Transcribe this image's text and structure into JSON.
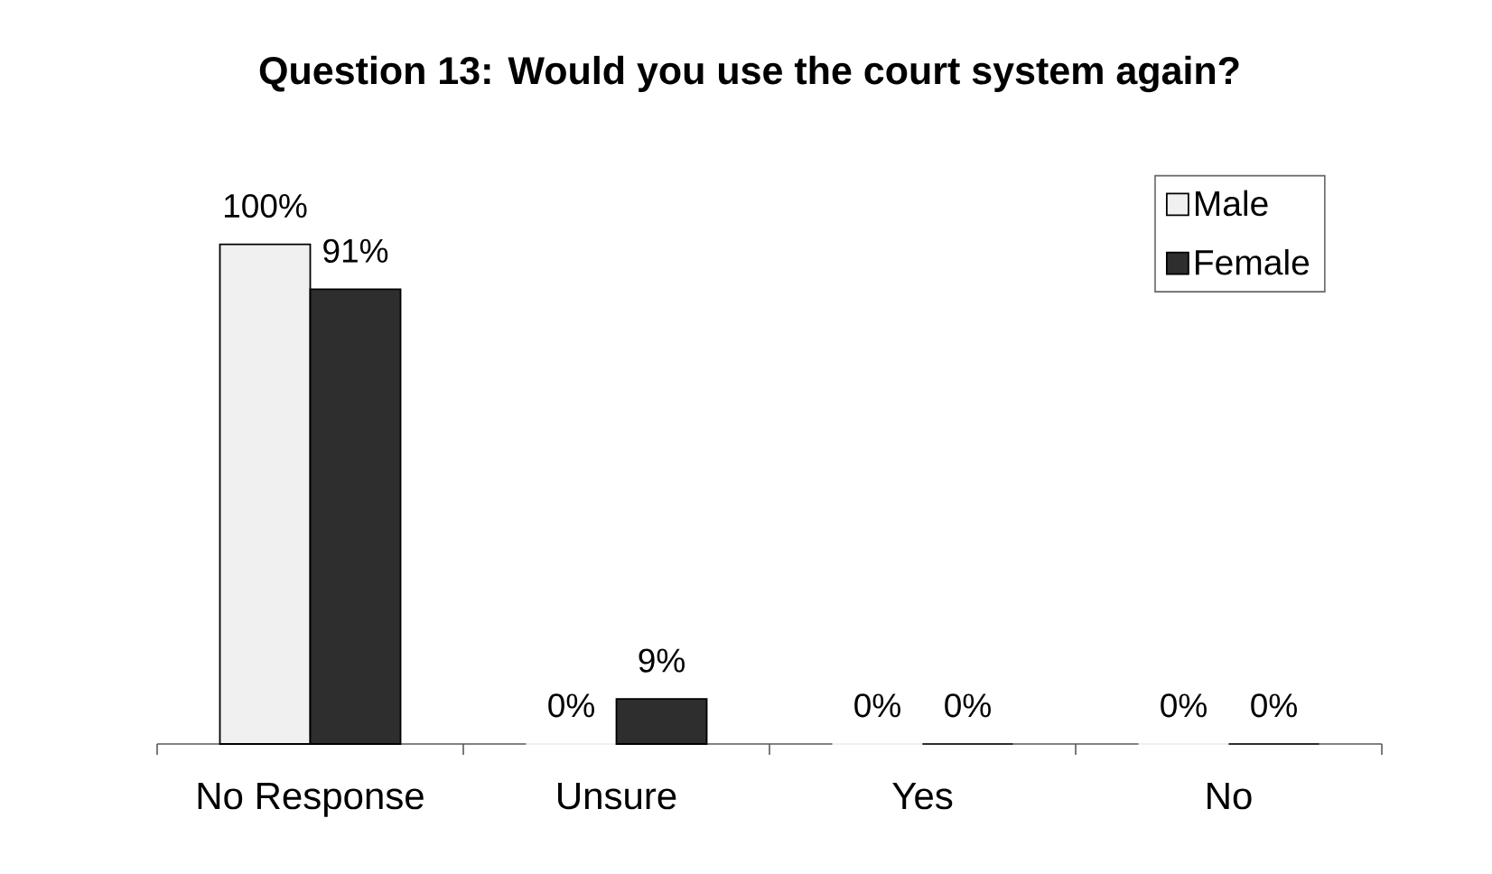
{
  "chart_data": {
    "type": "bar",
    "title": "Question 13: Would you use the court system again?",
    "categories": [
      "No Response",
      "Unsure",
      "Yes",
      "No"
    ],
    "series": [
      {
        "name": "Male",
        "color": "#f0f0f0",
        "values": [
          100,
          0,
          0,
          0
        ],
        "value_labels": [
          "100%",
          "0%",
          "0%",
          "0%"
        ]
      },
      {
        "name": "Female",
        "color": "#2e2e2e",
        "values": [
          91,
          9,
          0,
          0
        ],
        "value_labels": [
          "91%",
          "9%",
          "0%",
          "0%"
        ]
      }
    ],
    "legend": "top right"
  }
}
